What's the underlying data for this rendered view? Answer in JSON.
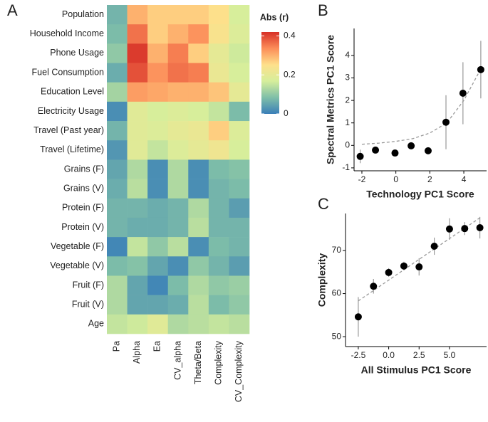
{
  "chart_data": [
    {
      "type": "heatmap",
      "panel_label": "A",
      "title": "Abs (r)",
      "rows": [
        "Population",
        "Household Income",
        "Phone Usage",
        "Fuel Consumption",
        "Education Level",
        "Electricity Usage",
        "Travel (Past year)",
        "Travel (Lifetime)",
        "Grains (F)",
        "Grains (V)",
        "Protein (F)",
        "Protein (V)",
        "Vegetable (F)",
        "Vegetable (V)",
        "Fruit (F)",
        "Fruit (V)",
        "Age"
      ],
      "columns": [
        "Pa",
        "Alpha",
        "Ea",
        "CV_alpha",
        "Theta/Beta",
        "Complexity",
        "CV_Complexity"
      ],
      "values": [
        [
          0.07,
          0.3,
          0.27,
          0.27,
          0.27,
          0.25,
          0.17
        ],
        [
          0.08,
          0.36,
          0.27,
          0.3,
          0.33,
          0.24,
          0.18
        ],
        [
          0.1,
          0.41,
          0.3,
          0.35,
          0.27,
          0.2,
          0.16
        ],
        [
          0.06,
          0.39,
          0.33,
          0.36,
          0.35,
          0.21,
          0.17
        ],
        [
          0.12,
          0.32,
          0.31,
          0.3,
          0.3,
          0.28,
          0.2
        ],
        [
          0.02,
          0.19,
          0.17,
          0.18,
          0.17,
          0.15,
          0.08
        ],
        [
          0.07,
          0.19,
          0.18,
          0.2,
          0.21,
          0.27,
          0.18
        ],
        [
          0.03,
          0.19,
          0.15,
          0.18,
          0.2,
          0.22,
          0.17
        ],
        [
          0.05,
          0.13,
          0.02,
          0.13,
          0.02,
          0.08,
          0.09
        ],
        [
          0.06,
          0.14,
          0.02,
          0.13,
          0.02,
          0.07,
          0.08
        ],
        [
          0.07,
          0.07,
          0.06,
          0.07,
          0.13,
          0.07,
          0.04
        ],
        [
          0.07,
          0.06,
          0.06,
          0.07,
          0.14,
          0.07,
          0.07
        ],
        [
          0.01,
          0.15,
          0.1,
          0.14,
          0.02,
          0.08,
          0.07
        ],
        [
          0.08,
          0.09,
          0.05,
          0.02,
          0.1,
          0.07,
          0.04
        ],
        [
          0.13,
          0.05,
          0.01,
          0.08,
          0.13,
          0.1,
          0.11
        ],
        [
          0.13,
          0.05,
          0.05,
          0.06,
          0.14,
          0.08,
          0.1
        ],
        [
          0.15,
          0.16,
          0.19,
          0.13,
          0.14,
          0.15,
          0.14
        ]
      ],
      "colors": [
        "#3a7fb8",
        "#7fbfa8",
        "#d6ee9b",
        "#fee08b",
        "#fc8d59",
        "#d73027"
      ],
      "zlim": [
        0,
        0.42
      ],
      "zticks": [
        0,
        0.2,
        0.4
      ]
    },
    {
      "type": "scatter",
      "panel_label": "B",
      "x_label": "Technology PC1 Score",
      "y_label": "Spectral Metrics PC1 Score",
      "x": [
        -2.1,
        -1.2,
        -0.05,
        0.9,
        1.9,
        2.95,
        3.95,
        5.0
      ],
      "values": [
        -0.49,
        -0.21,
        -0.34,
        -0.02,
        -0.24,
        1.03,
        2.32,
        3.37
      ],
      "errors": [
        0.3,
        0.1,
        0.1,
        0.1,
        0.1,
        1.2,
        1.38,
        1.28
      ],
      "color": "#000000",
      "error_color": "#999999",
      "trend": {
        "x": [
          -2,
          -1,
          0,
          1,
          2,
          3,
          4,
          5
        ],
        "values": [
          0.05,
          0.1,
          0.18,
          0.3,
          0.55,
          1.0,
          2.0,
          3.4
        ],
        "color": "#999999"
      },
      "xlim": [
        -2.46,
        5.34
      ],
      "ylim": [
        -1.13,
        5.2
      ],
      "xticks": [
        -2,
        0,
        2,
        4
      ],
      "yticks": [
        -1,
        0,
        1,
        2,
        3,
        4
      ]
    },
    {
      "type": "scatter",
      "panel_label": "C",
      "x_label": "All Stimulus PC1 Score",
      "y_label": "Complexity",
      "x": [
        -2.5,
        -1.25,
        0,
        1.25,
        2.5,
        3.75,
        5,
        6.25,
        7.5
      ],
      "values": [
        54.6,
        61.7,
        64.9,
        66.4,
        66.2,
        71,
        75,
        75.1,
        75.3
      ],
      "errors": [
        4.6,
        1.7,
        1,
        1,
        2,
        2,
        2.5,
        1.5,
        2.5
      ],
      "color": "#000000",
      "error_color": "#999999",
      "trend": {
        "x": [
          -2.5,
          7.5
        ],
        "values": [
          58.3,
          77.6
        ],
        "color": "#999999"
      },
      "xlim": [
        -3.55,
        8.05
      ],
      "ylim": [
        47.7,
        78.6
      ],
      "xticks": [
        -2.5,
        {
          "value": 0,
          "label": "0.0"
        },
        2.5,
        {
          "value": 5,
          "label": "5.0"
        }
      ],
      "yticks": [
        50,
        60,
        70
      ]
    }
  ]
}
